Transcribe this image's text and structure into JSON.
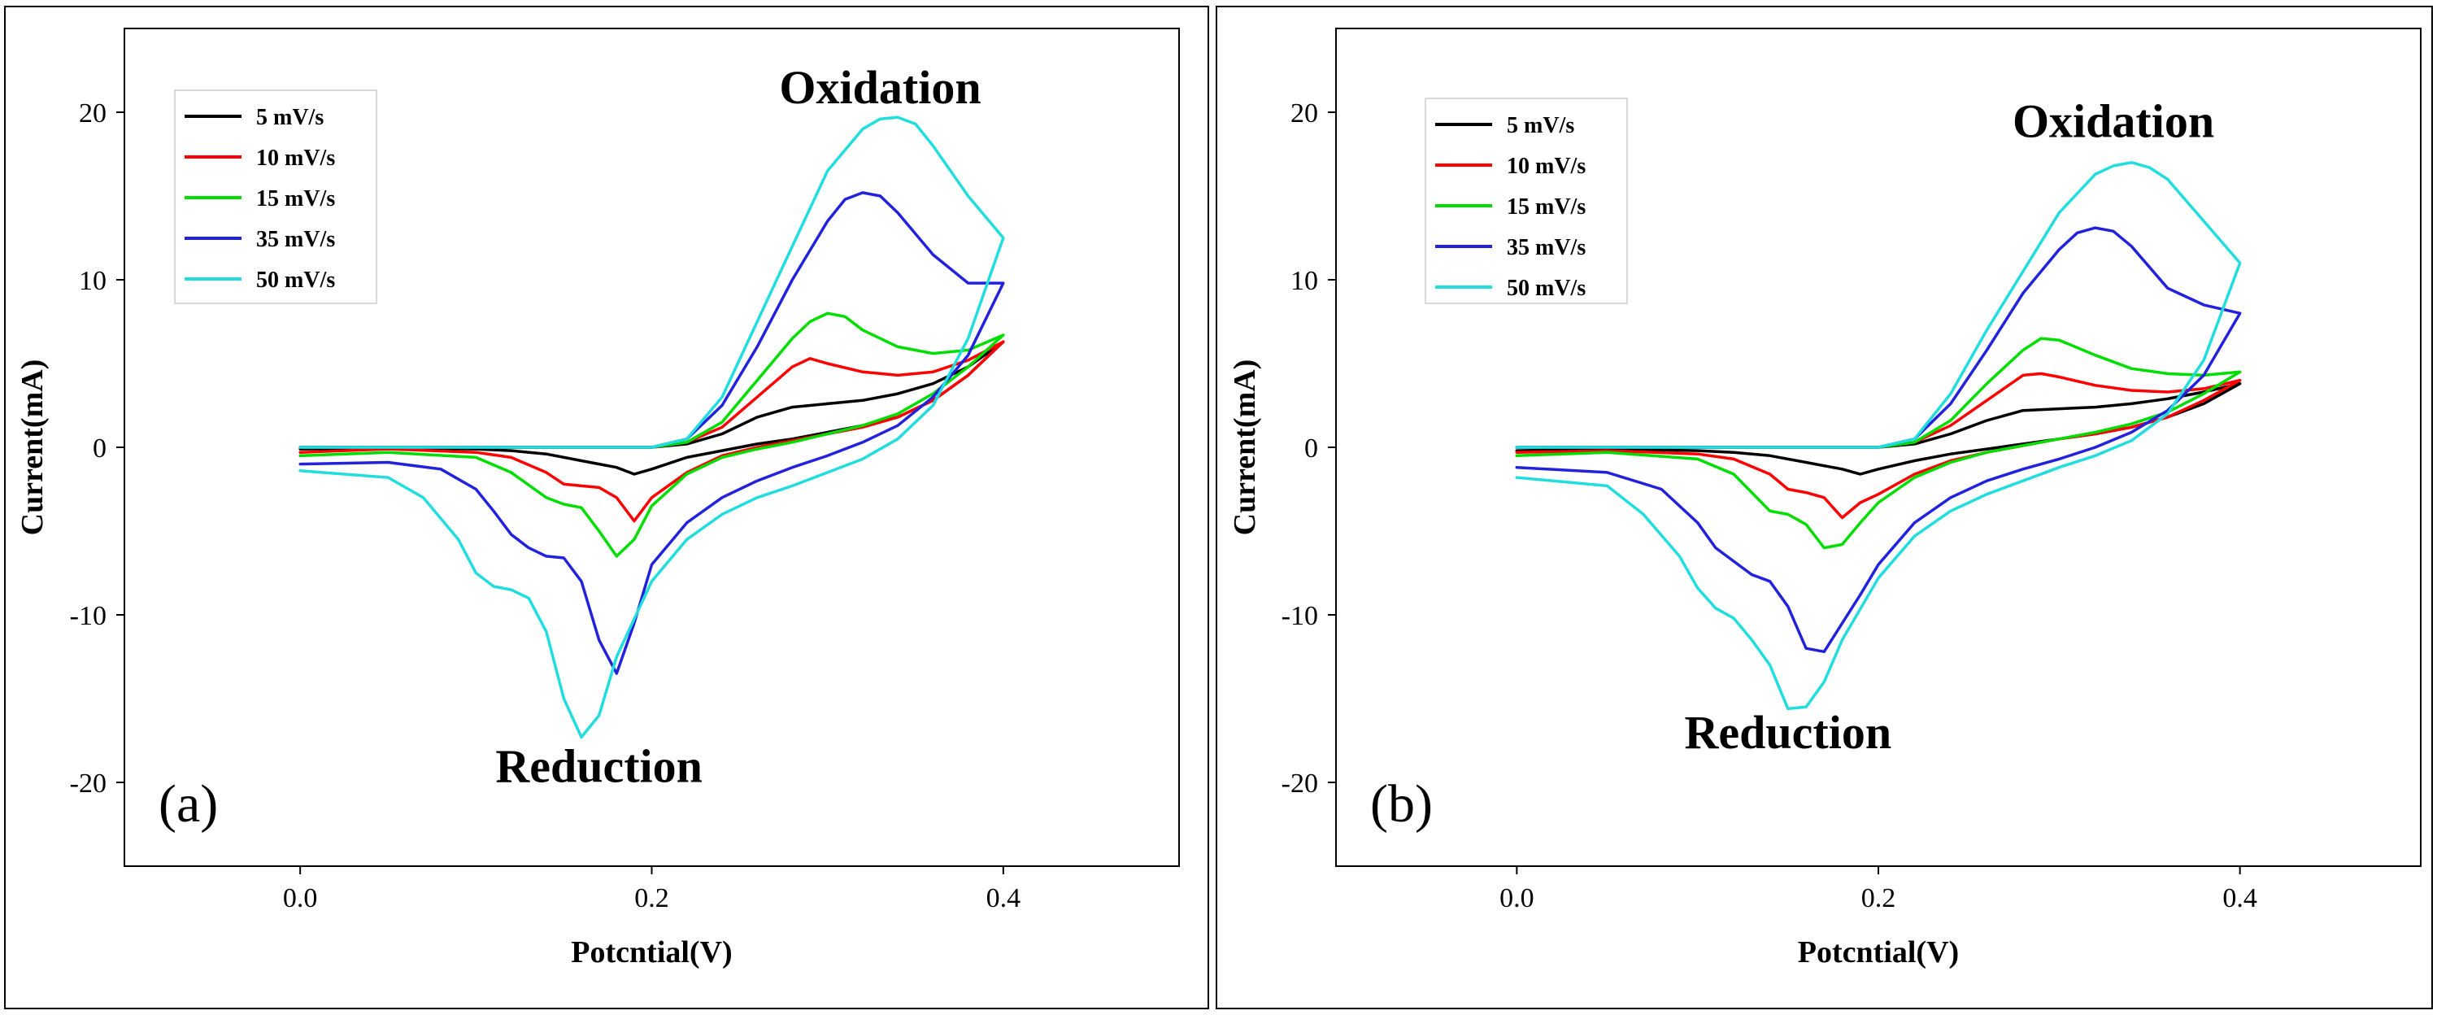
{
  "chart_data": [
    {
      "type": "line",
      "panel_label": "(a)",
      "xlabel": "Potcntial(V)",
      "ylabel": "Current(mA)",
      "xlim": [
        -0.1,
        0.5
      ],
      "ylim": [
        -25,
        25
      ],
      "xticks": [
        0.0,
        0.2,
        0.4
      ],
      "xtick_labels": [
        "0.0",
        "0.2",
        "0.4"
      ],
      "yticks": [
        -20,
        -10,
        0,
        10,
        20
      ],
      "ytick_labels": [
        "-20",
        "-10",
        "0",
        "10",
        "20"
      ],
      "annotations": [
        {
          "text": "Oxidation",
          "x": 0.33,
          "y": 21.5
        },
        {
          "text": "Reduction",
          "x": 0.17,
          "y": -19.0
        }
      ],
      "legend_position": "top-left",
      "series": [
        {
          "name": "5 mV/s",
          "color": "#000000",
          "x": [
            0.0,
            0.1,
            0.2,
            0.22,
            0.24,
            0.26,
            0.28,
            0.3,
            0.32,
            0.34,
            0.36,
            0.38,
            0.4,
            0.38,
            0.36,
            0.34,
            0.32,
            0.3,
            0.28,
            0.26,
            0.24,
            0.22,
            0.2,
            0.19,
            0.18,
            0.17,
            0.16,
            0.14,
            0.12,
            0.1,
            0.05,
            0.0
          ],
          "y": [
            0,
            0,
            0,
            0.2,
            0.8,
            1.8,
            2.4,
            2.6,
            2.8,
            3.2,
            3.8,
            4.8,
            6.3,
            4.3,
            2.8,
            1.8,
            1.3,
            0.9,
            0.5,
            0.2,
            -0.2,
            -0.6,
            -1.3,
            -1.6,
            -1.2,
            -1.0,
            -0.8,
            -0.4,
            -0.2,
            -0.1,
            -0.05,
            -0.1
          ]
        },
        {
          "name": "10 mV/s",
          "color": "#ff0000",
          "x": [
            0.0,
            0.1,
            0.2,
            0.22,
            0.24,
            0.26,
            0.28,
            0.29,
            0.3,
            0.32,
            0.34,
            0.36,
            0.38,
            0.4,
            0.38,
            0.36,
            0.34,
            0.32,
            0.3,
            0.28,
            0.26,
            0.24,
            0.22,
            0.2,
            0.19,
            0.18,
            0.17,
            0.16,
            0.15,
            0.14,
            0.12,
            0.1,
            0.05,
            0.0
          ],
          "y": [
            0,
            0,
            0,
            0.3,
            1.2,
            3.0,
            4.8,
            5.3,
            5.0,
            4.5,
            4.3,
            4.5,
            5.2,
            6.3,
            4.3,
            2.8,
            1.8,
            1.2,
            0.8,
            0.4,
            0,
            -0.5,
            -1.5,
            -3.0,
            -4.4,
            -3.0,
            -2.4,
            -2.3,
            -2.2,
            -1.5,
            -0.6,
            -0.3,
            -0.1,
            -0.3
          ]
        },
        {
          "name": "15 mV/s",
          "color": "#00dd00",
          "x": [
            0.0,
            0.1,
            0.2,
            0.22,
            0.24,
            0.26,
            0.28,
            0.29,
            0.3,
            0.31,
            0.32,
            0.34,
            0.36,
            0.38,
            0.4,
            0.38,
            0.36,
            0.34,
            0.32,
            0.3,
            0.28,
            0.26,
            0.24,
            0.22,
            0.2,
            0.19,
            0.18,
            0.17,
            0.16,
            0.15,
            0.14,
            0.12,
            0.1,
            0.05,
            0.0
          ],
          "y": [
            0,
            0,
            0,
            0.3,
            1.5,
            4.0,
            6.5,
            7.5,
            8.0,
            7.8,
            7.0,
            6.0,
            5.6,
            5.8,
            6.7,
            4.8,
            3.2,
            2.0,
            1.3,
            0.8,
            0.3,
            -0.1,
            -0.6,
            -1.6,
            -3.5,
            -5.5,
            -6.5,
            -5.0,
            -3.6,
            -3.4,
            -3.0,
            -1.5,
            -0.6,
            -0.3,
            -0.5
          ]
        },
        {
          "name": "35 mV/s",
          "color": "#2222dd",
          "x": [
            0.0,
            0.1,
            0.2,
            0.22,
            0.24,
            0.26,
            0.28,
            0.3,
            0.31,
            0.32,
            0.33,
            0.34,
            0.36,
            0.38,
            0.4,
            0.38,
            0.36,
            0.34,
            0.32,
            0.3,
            0.28,
            0.26,
            0.24,
            0.22,
            0.2,
            0.19,
            0.18,
            0.17,
            0.16,
            0.15,
            0.14,
            0.13,
            0.12,
            0.11,
            0.1,
            0.08,
            0.05,
            0.0
          ],
          "y": [
            0,
            0,
            0,
            0.5,
            2.5,
            6.0,
            10.0,
            13.5,
            14.8,
            15.2,
            15.0,
            14.0,
            11.5,
            9.8,
            9.8,
            5.5,
            3.0,
            1.3,
            0.3,
            -0.5,
            -1.2,
            -2.0,
            -3.0,
            -4.5,
            -7.0,
            -10.5,
            -13.5,
            -11.5,
            -8.0,
            -6.6,
            -6.5,
            -6.0,
            -5.2,
            -3.8,
            -2.5,
            -1.3,
            -0.9,
            -1.0
          ]
        },
        {
          "name": "50 mV/s",
          "color": "#22dddd",
          "x": [
            0.0,
            0.1,
            0.2,
            0.22,
            0.24,
            0.26,
            0.28,
            0.3,
            0.32,
            0.33,
            0.34,
            0.35,
            0.36,
            0.38,
            0.4,
            0.38,
            0.36,
            0.34,
            0.32,
            0.3,
            0.28,
            0.26,
            0.24,
            0.22,
            0.2,
            0.18,
            0.17,
            0.16,
            0.15,
            0.14,
            0.13,
            0.12,
            0.11,
            0.1,
            0.09,
            0.07,
            0.05,
            0.0
          ],
          "y": [
            0,
            0,
            0,
            0.5,
            3.0,
            7.5,
            12.0,
            16.5,
            19.0,
            19.6,
            19.7,
            19.3,
            18.0,
            15.0,
            12.5,
            6.5,
            2.5,
            0.5,
            -0.7,
            -1.5,
            -2.3,
            -3.0,
            -4.0,
            -5.5,
            -8.0,
            -12.5,
            -16.0,
            -17.3,
            -15.0,
            -11.0,
            -9.0,
            -8.5,
            -8.3,
            -7.5,
            -5.5,
            -3.0,
            -1.8,
            -1.4
          ]
        }
      ]
    },
    {
      "type": "line",
      "panel_label": "(b)",
      "xlabel": "Potcntial(V)",
      "ylabel": "Current(mA)",
      "xlim": [
        -0.1,
        0.5
      ],
      "ylim": [
        -25,
        25
      ],
      "xticks": [
        0.0,
        0.2,
        0.4
      ],
      "xtick_labels": [
        "0.0",
        "0.2",
        "0.4"
      ],
      "yticks": [
        -20,
        -10,
        0,
        10,
        20
      ],
      "ytick_labels": [
        "-20",
        "-10",
        "0",
        "10",
        "20"
      ],
      "annotations": [
        {
          "text": "Oxidation",
          "x": 0.33,
          "y": 19.5
        },
        {
          "text": "Reduction",
          "x": 0.15,
          "y": -17.0
        }
      ],
      "legend_position": "top-left",
      "series": [
        {
          "name": "5 mV/s",
          "color": "#000000",
          "x": [
            0.0,
            0.1,
            0.2,
            0.22,
            0.24,
            0.26,
            0.28,
            0.3,
            0.32,
            0.34,
            0.36,
            0.38,
            0.4,
            0.38,
            0.36,
            0.34,
            0.32,
            0.3,
            0.28,
            0.26,
            0.24,
            0.22,
            0.2,
            0.19,
            0.18,
            0.17,
            0.16,
            0.14,
            0.12,
            0.1,
            0.05,
            0.0
          ],
          "y": [
            0,
            0,
            0,
            0.2,
            0.8,
            1.6,
            2.2,
            2.3,
            2.4,
            2.6,
            2.9,
            3.3,
            3.8,
            2.6,
            1.8,
            1.2,
            0.8,
            0.5,
            0.2,
            -0.1,
            -0.4,
            -0.8,
            -1.3,
            -1.6,
            -1.3,
            -1.1,
            -0.9,
            -0.5,
            -0.3,
            -0.2,
            -0.1,
            -0.2
          ]
        },
        {
          "name": "10 mV/s",
          "color": "#ff0000",
          "x": [
            0.0,
            0.1,
            0.2,
            0.22,
            0.24,
            0.26,
            0.28,
            0.29,
            0.3,
            0.32,
            0.34,
            0.36,
            0.38,
            0.4,
            0.38,
            0.36,
            0.34,
            0.32,
            0.3,
            0.28,
            0.26,
            0.24,
            0.22,
            0.2,
            0.19,
            0.18,
            0.17,
            0.16,
            0.15,
            0.14,
            0.12,
            0.1,
            0.05,
            0.0
          ],
          "y": [
            0,
            0,
            0,
            0.3,
            1.3,
            2.8,
            4.3,
            4.4,
            4.2,
            3.7,
            3.4,
            3.3,
            3.5,
            4.0,
            2.8,
            1.8,
            1.2,
            0.8,
            0.5,
            0.1,
            -0.3,
            -0.8,
            -1.6,
            -2.8,
            -3.3,
            -4.2,
            -3.0,
            -2.7,
            -2.5,
            -1.6,
            -0.7,
            -0.4,
            -0.2,
            -0.3
          ]
        },
        {
          "name": "15 mV/s",
          "color": "#00dd00",
          "x": [
            0.0,
            0.1,
            0.2,
            0.22,
            0.24,
            0.26,
            0.28,
            0.29,
            0.3,
            0.32,
            0.34,
            0.36,
            0.38,
            0.4,
            0.38,
            0.36,
            0.34,
            0.32,
            0.3,
            0.28,
            0.26,
            0.24,
            0.22,
            0.2,
            0.19,
            0.18,
            0.17,
            0.16,
            0.15,
            0.14,
            0.12,
            0.1,
            0.05,
            0.0
          ],
          "y": [
            0,
            0,
            0,
            0.3,
            1.6,
            3.8,
            5.8,
            6.5,
            6.4,
            5.5,
            4.7,
            4.4,
            4.3,
            4.5,
            3.2,
            2.1,
            1.4,
            0.9,
            0.5,
            0.1,
            -0.3,
            -0.9,
            -1.8,
            -3.3,
            -4.5,
            -5.8,
            -6.0,
            -4.6,
            -4.0,
            -3.8,
            -1.6,
            -0.7,
            -0.3,
            -0.5
          ]
        },
        {
          "name": "35 mV/s",
          "color": "#2222dd",
          "x": [
            0.0,
            0.1,
            0.2,
            0.22,
            0.24,
            0.26,
            0.28,
            0.3,
            0.31,
            0.32,
            0.33,
            0.34,
            0.36,
            0.38,
            0.4,
            0.38,
            0.36,
            0.34,
            0.32,
            0.3,
            0.28,
            0.26,
            0.24,
            0.22,
            0.2,
            0.19,
            0.18,
            0.17,
            0.16,
            0.15,
            0.14,
            0.13,
            0.12,
            0.11,
            0.1,
            0.08,
            0.05,
            0.0
          ],
          "y": [
            0,
            0,
            0,
            0.5,
            2.6,
            5.8,
            9.2,
            11.8,
            12.8,
            13.1,
            12.9,
            12.0,
            9.5,
            8.5,
            8.0,
            4.3,
            2.2,
            0.9,
            0.0,
            -0.7,
            -1.3,
            -2.0,
            -3.0,
            -4.5,
            -7.0,
            -8.8,
            -10.5,
            -12.2,
            -12.0,
            -9.5,
            -8.0,
            -7.6,
            -6.8,
            -6.0,
            -4.5,
            -2.5,
            -1.5,
            -1.2
          ]
        },
        {
          "name": "50 mV/s",
          "color": "#22dddd",
          "x": [
            0.0,
            0.1,
            0.2,
            0.22,
            0.24,
            0.26,
            0.28,
            0.3,
            0.32,
            0.33,
            0.34,
            0.35,
            0.36,
            0.38,
            0.4,
            0.38,
            0.36,
            0.34,
            0.32,
            0.3,
            0.28,
            0.26,
            0.24,
            0.22,
            0.2,
            0.18,
            0.17,
            0.16,
            0.15,
            0.14,
            0.13,
            0.12,
            0.11,
            0.1,
            0.09,
            0.07,
            0.05,
            0.0
          ],
          "y": [
            0,
            0,
            0,
            0.5,
            3.2,
            7.0,
            10.5,
            14.0,
            16.3,
            16.8,
            17.0,
            16.7,
            16.0,
            13.5,
            11.0,
            5.2,
            2.0,
            0.4,
            -0.5,
            -1.2,
            -2.0,
            -2.8,
            -3.8,
            -5.3,
            -7.8,
            -11.5,
            -14.0,
            -15.5,
            -15.6,
            -13.0,
            -11.5,
            -10.2,
            -9.6,
            -8.4,
            -6.5,
            -4.0,
            -2.3,
            -1.8
          ]
        }
      ]
    }
  ]
}
